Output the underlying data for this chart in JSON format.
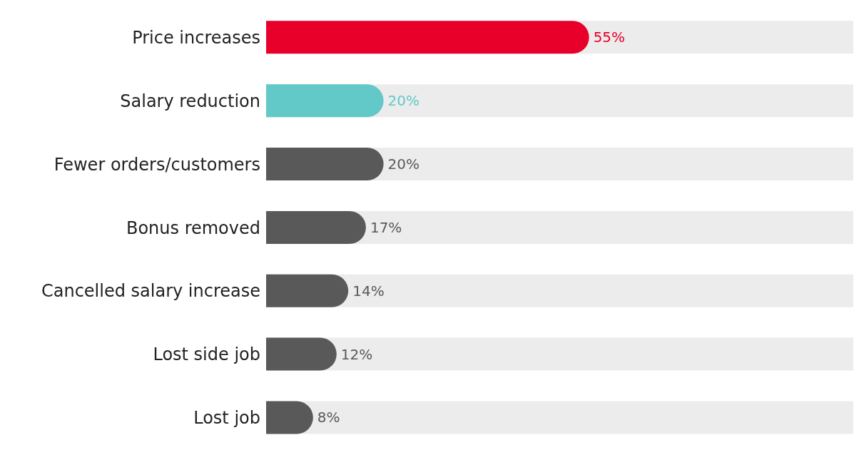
{
  "chart_data": {
    "type": "bar",
    "orientation": "horizontal",
    "categories": [
      "Price increases",
      "Salary reduction",
      "Fewer orders/customers",
      "Bonus removed",
      "Cancelled salary increase",
      "Lost side job",
      "Lost job"
    ],
    "values": [
      55,
      20,
      20,
      17,
      14,
      12,
      8
    ],
    "colors": [
      "#e8002a",
      "#62c8c8",
      "#595959",
      "#595959",
      "#595959",
      "#595959",
      "#595959"
    ],
    "value_labels": [
      "55%",
      "20%",
      "20%",
      "17%",
      "14%",
      "12%",
      "8%"
    ],
    "xlim": [
      0,
      100
    ],
    "tick_labels": "y"
  }
}
